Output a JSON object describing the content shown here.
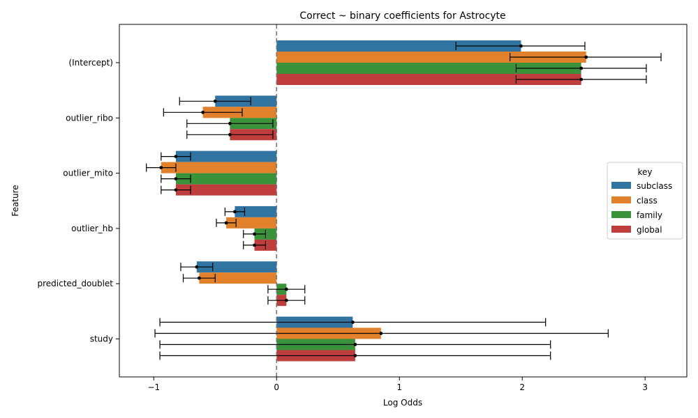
{
  "chart_data": {
    "type": "bar",
    "orientation": "horizontal",
    "title": "Correct ~ binary coefficients for Astrocyte",
    "xlabel": "Log Odds",
    "ylabel": "Feature",
    "xlim": [
      -1.28,
      3.34
    ],
    "xticks": [
      -1,
      0,
      1,
      2,
      3
    ],
    "xtick_labels": [
      "−1",
      "0",
      "1",
      "2",
      "3"
    ],
    "reference_line": 0,
    "legend_title": "key",
    "legend_position": "center-right",
    "categories": [
      "(Intercept)",
      "outlier_ribo",
      "outlier_mito",
      "outlier_hb",
      "predicted_doublet",
      "study"
    ],
    "series": [
      {
        "name": "subclass",
        "color": "#3274a1",
        "values": [
          1.99,
          -0.5,
          -0.82,
          -0.34,
          -0.65,
          0.62
        ],
        "ci_low": [
          1.46,
          -0.79,
          -0.94,
          -0.42,
          -0.78,
          -0.95
        ],
        "ci_high": [
          2.51,
          -0.21,
          -0.7,
          -0.26,
          -0.52,
          2.19
        ]
      },
      {
        "name": "class",
        "color": "#e1812c",
        "values": [
          2.52,
          -0.6,
          -0.94,
          -0.41,
          -0.63,
          0.85
        ],
        "ci_low": [
          1.9,
          -0.92,
          -1.06,
          -0.49,
          -0.76,
          -0.99
        ],
        "ci_high": [
          3.13,
          -0.28,
          -0.82,
          -0.33,
          -0.5,
          2.7
        ]
      },
      {
        "name": "family",
        "color": "#3a923a",
        "values": [
          2.48,
          -0.38,
          -0.82,
          -0.18,
          0.08,
          0.64
        ],
        "ci_low": [
          1.95,
          -0.73,
          -0.94,
          -0.27,
          -0.07,
          -0.95
        ],
        "ci_high": [
          3.01,
          -0.03,
          -0.7,
          -0.09,
          0.23,
          2.23
        ]
      },
      {
        "name": "global",
        "color": "#c03d3e",
        "values": [
          2.48,
          -0.38,
          -0.82,
          -0.18,
          0.08,
          0.64
        ],
        "ci_low": [
          1.95,
          -0.73,
          -0.94,
          -0.27,
          -0.07,
          -0.95
        ],
        "ci_high": [
          3.01,
          -0.03,
          -0.7,
          -0.09,
          0.23,
          2.23
        ]
      }
    ]
  }
}
